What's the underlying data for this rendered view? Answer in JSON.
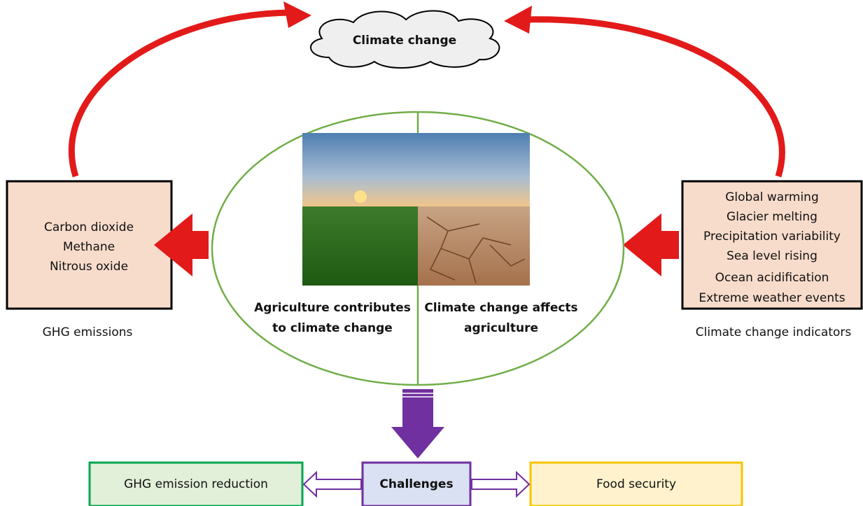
{
  "cloud": {
    "label": "Climate change"
  },
  "left_box": {
    "lines": [
      "Carbon dioxide",
      "Methane",
      "Nitrous oxide"
    ],
    "caption": "GHG emissions"
  },
  "right_box": {
    "lines": [
      "Global warming",
      "Glacier melting",
      "Precipitation variability",
      "Sea level rising",
      "Ocean acidification",
      "Extreme weather events"
    ],
    "caption": "Climate change indicators"
  },
  "center": {
    "left_text": [
      "Agriculture contributes",
      "to climate change"
    ],
    "right_text": [
      "Climate change affects",
      "agriculture"
    ]
  },
  "bottom": {
    "left": "GHG emission reduction",
    "middle": "Challenges",
    "right": "Food security"
  }
}
